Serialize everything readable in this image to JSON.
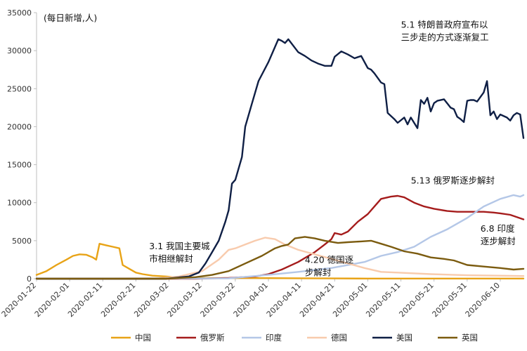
{
  "chart_data": {
    "type": "line",
    "title": "",
    "unit_label": "(每日新增,人)",
    "ylim": [
      0,
      35000
    ],
    "y_ticks": [
      0,
      5000,
      10000,
      15000,
      20000,
      25000,
      30000,
      35000
    ],
    "x_range": [
      "2020-01-22",
      "2020-06-17"
    ],
    "x_ticks": [
      "2020-01-22",
      "2020-02-01",
      "2020-02-11",
      "2020-02-21",
      "2020-03-02",
      "2020-03-12",
      "2020-03-22",
      "2020-04-01",
      "2020-04-11",
      "2020-04-21",
      "2020-05-01",
      "2020-05-11",
      "2020-05-21",
      "2020-05-31",
      "2020-06-10"
    ],
    "grid": false,
    "legend_position": "bottom",
    "series": [
      {
        "name": "中国",
        "color": "#E8A317",
        "points": [
          [
            "2020-01-22",
            500
          ],
          [
            "2020-01-25",
            1000
          ],
          [
            "2020-01-28",
            1800
          ],
          [
            "2020-01-31",
            2500
          ],
          [
            "2020-02-02",
            3000
          ],
          [
            "2020-02-04",
            3200
          ],
          [
            "2020-02-06",
            3150
          ],
          [
            "2020-02-08",
            2800
          ],
          [
            "2020-02-09",
            2500
          ],
          [
            "2020-02-10",
            4600
          ],
          [
            "2020-02-12",
            4400
          ],
          [
            "2020-02-14",
            4200
          ],
          [
            "2020-02-16",
            4000
          ],
          [
            "2020-02-17",
            1800
          ],
          [
            "2020-02-19",
            1300
          ],
          [
            "2020-02-21",
            800
          ],
          [
            "2020-02-23",
            600
          ],
          [
            "2020-02-26",
            400
          ],
          [
            "2020-03-01",
            300
          ],
          [
            "2020-03-05",
            150
          ],
          [
            "2020-03-10",
            80
          ],
          [
            "2020-03-20",
            80
          ],
          [
            "2020-04-01",
            70
          ],
          [
            "2020-04-10",
            60
          ],
          [
            "2020-04-20",
            40
          ],
          [
            "2020-05-01",
            20
          ],
          [
            "2020-06-17",
            20
          ]
        ]
      },
      {
        "name": "俄罗斯",
        "color": "#A51C1C",
        "points": [
          [
            "2020-01-22",
            0
          ],
          [
            "2020-03-10",
            0
          ],
          [
            "2020-03-20",
            100
          ],
          [
            "2020-03-28",
            300
          ],
          [
            "2020-04-01",
            600
          ],
          [
            "2020-04-05",
            1200
          ],
          [
            "2020-04-10",
            2200
          ],
          [
            "2020-04-15",
            3500
          ],
          [
            "2020-04-18",
            4500
          ],
          [
            "2020-04-20",
            5200
          ],
          [
            "2020-04-21",
            6000
          ],
          [
            "2020-04-23",
            5800
          ],
          [
            "2020-04-25",
            6200
          ],
          [
            "2020-04-28",
            7500
          ],
          [
            "2020-05-01",
            8500
          ],
          [
            "2020-05-03",
            9500
          ],
          [
            "2020-05-05",
            10500
          ],
          [
            "2020-05-08",
            10800
          ],
          [
            "2020-05-10",
            10900
          ],
          [
            "2020-05-12",
            10700
          ],
          [
            "2020-05-15",
            10000
          ],
          [
            "2020-05-18",
            9500
          ],
          [
            "2020-05-21",
            9200
          ],
          [
            "2020-05-25",
            8900
          ],
          [
            "2020-05-28",
            8800
          ],
          [
            "2020-06-01",
            8800
          ],
          [
            "2020-06-05",
            8800
          ],
          [
            "2020-06-08",
            8700
          ],
          [
            "2020-06-10",
            8600
          ],
          [
            "2020-06-13",
            8400
          ],
          [
            "2020-06-17",
            7800
          ]
        ]
      },
      {
        "name": "印度",
        "color": "#B4C7E7",
        "points": [
          [
            "2020-01-22",
            0
          ],
          [
            "2020-03-20",
            50
          ],
          [
            "2020-04-01",
            500
          ],
          [
            "2020-04-10",
            900
          ],
          [
            "2020-04-20",
            1400
          ],
          [
            "2020-04-30",
            2200
          ],
          [
            "2020-05-05",
            3000
          ],
          [
            "2020-05-10",
            3500
          ],
          [
            "2020-05-15",
            4200
          ],
          [
            "2020-05-20",
            5500
          ],
          [
            "2020-05-25",
            6500
          ],
          [
            "2020-05-31",
            8000
          ],
          [
            "2020-06-05",
            9500
          ],
          [
            "2020-06-10",
            10500
          ],
          [
            "2020-06-14",
            11000
          ],
          [
            "2020-06-16",
            10800
          ],
          [
            "2020-06-17",
            11000
          ]
        ]
      },
      {
        "name": "德国",
        "color": "#F8CBAD",
        "points": [
          [
            "2020-01-22",
            0
          ],
          [
            "2020-02-28",
            50
          ],
          [
            "2020-03-05",
            300
          ],
          [
            "2020-03-12",
            1000
          ],
          [
            "2020-03-17",
            2500
          ],
          [
            "2020-03-20",
            3800
          ],
          [
            "2020-03-22",
            4000
          ],
          [
            "2020-03-25",
            4500
          ],
          [
            "2020-03-28",
            5000
          ],
          [
            "2020-03-31",
            5400
          ],
          [
            "2020-04-03",
            5200
          ],
          [
            "2020-04-06",
            4500
          ],
          [
            "2020-04-10",
            3800
          ],
          [
            "2020-04-15",
            3200
          ],
          [
            "2020-04-20",
            2600
          ],
          [
            "2020-04-25",
            2000
          ],
          [
            "2020-04-30",
            1400
          ],
          [
            "2020-05-05",
            900
          ],
          [
            "2020-05-10",
            800
          ],
          [
            "2020-05-20",
            600
          ],
          [
            "2020-05-31",
            450
          ],
          [
            "2020-06-10",
            400
          ],
          [
            "2020-06-17",
            350
          ]
        ]
      },
      {
        "name": "美国",
        "color": "#0F1F45",
        "points": [
          [
            "2020-01-22",
            0
          ],
          [
            "2020-03-01",
            0
          ],
          [
            "2020-03-08",
            300
          ],
          [
            "2020-03-11",
            800
          ],
          [
            "2020-03-13",
            2000
          ],
          [
            "2020-03-15",
            3500
          ],
          [
            "2020-03-17",
            5000
          ],
          [
            "2020-03-19",
            7500
          ],
          [
            "2020-03-20",
            9000
          ],
          [
            "2020-03-21",
            12500
          ],
          [
            "2020-03-22",
            13000
          ],
          [
            "2020-03-24",
            16000
          ],
          [
            "2020-03-25",
            20000
          ],
          [
            "2020-03-27",
            23000
          ],
          [
            "2020-03-29",
            26000
          ],
          [
            "2020-04-01",
            28500
          ],
          [
            "2020-04-02",
            29500
          ],
          [
            "2020-04-04",
            31500
          ],
          [
            "2020-04-05",
            31300
          ],
          [
            "2020-04-06",
            31000
          ],
          [
            "2020-04-07",
            31500
          ],
          [
            "2020-04-10",
            29800
          ],
          [
            "2020-04-12",
            29300
          ],
          [
            "2020-04-14",
            28700
          ],
          [
            "2020-04-16",
            28300
          ],
          [
            "2020-04-18",
            28000
          ],
          [
            "2020-04-20",
            28000
          ],
          [
            "2020-04-21",
            29200
          ],
          [
            "2020-04-23",
            29900
          ],
          [
            "2020-04-25",
            29500
          ],
          [
            "2020-04-27",
            29000
          ],
          [
            "2020-04-29",
            29300
          ],
          [
            "2020-05-01",
            27700
          ],
          [
            "2020-05-02",
            27500
          ],
          [
            "2020-05-03",
            27000
          ],
          [
            "2020-05-05",
            25800
          ],
          [
            "2020-05-06",
            25600
          ],
          [
            "2020-05-07",
            21800
          ],
          [
            "2020-05-09",
            21000
          ],
          [
            "2020-05-10",
            20500
          ],
          [
            "2020-05-12",
            21200
          ],
          [
            "2020-05-13",
            20300
          ],
          [
            "2020-05-14",
            21200
          ],
          [
            "2020-05-16",
            19800
          ],
          [
            "2020-05-17",
            23500
          ],
          [
            "2020-05-18",
            23000
          ],
          [
            "2020-05-19",
            23800
          ],
          [
            "2020-05-20",
            22000
          ],
          [
            "2020-05-21",
            23100
          ],
          [
            "2020-05-22",
            23400
          ],
          [
            "2020-05-24",
            23600
          ],
          [
            "2020-05-26",
            22500
          ],
          [
            "2020-05-27",
            22300
          ],
          [
            "2020-05-28",
            21300
          ],
          [
            "2020-05-29",
            21000
          ],
          [
            "2020-05-30",
            20600
          ],
          [
            "2020-05-31",
            23400
          ],
          [
            "2020-06-01",
            23500
          ],
          [
            "2020-06-02",
            23500
          ],
          [
            "2020-06-03",
            23300
          ],
          [
            "2020-06-05",
            24500
          ],
          [
            "2020-06-06",
            26000
          ],
          [
            "2020-06-07",
            21500
          ],
          [
            "2020-06-08",
            22000
          ],
          [
            "2020-06-09",
            21000
          ],
          [
            "2020-06-10",
            21600
          ],
          [
            "2020-06-12",
            21200
          ],
          [
            "2020-06-13",
            20800
          ],
          [
            "2020-06-14",
            21500
          ],
          [
            "2020-06-15",
            21800
          ],
          [
            "2020-06-16",
            21600
          ],
          [
            "2020-06-17",
            18500
          ]
        ]
      },
      {
        "name": "英国",
        "color": "#7B5B0F",
        "points": [
          [
            "2020-01-22",
            0
          ],
          [
            "2020-03-01",
            0
          ],
          [
            "2020-03-10",
            200
          ],
          [
            "2020-03-15",
            500
          ],
          [
            "2020-03-20",
            1000
          ],
          [
            "2020-03-25",
            2000
          ],
          [
            "2020-03-30",
            3000
          ],
          [
            "2020-04-03",
            4000
          ],
          [
            "2020-04-05",
            4300
          ],
          [
            "2020-04-07",
            4500
          ],
          [
            "2020-04-09",
            5300
          ],
          [
            "2020-04-12",
            5500
          ],
          [
            "2020-04-15",
            5300
          ],
          [
            "2020-04-18",
            5000
          ],
          [
            "2020-04-22",
            4700
          ],
          [
            "2020-04-25",
            4800
          ],
          [
            "2020-04-29",
            4900
          ],
          [
            "2020-05-02",
            5000
          ],
          [
            "2020-05-05",
            4600
          ],
          [
            "2020-05-08",
            4200
          ],
          [
            "2020-05-12",
            3600
          ],
          [
            "2020-05-16",
            3300
          ],
          [
            "2020-05-20",
            2800
          ],
          [
            "2020-05-24",
            2600
          ],
          [
            "2020-05-27",
            2400
          ],
          [
            "2020-05-31",
            1800
          ],
          [
            "2020-06-05",
            1600
          ],
          [
            "2020-06-10",
            1400
          ],
          [
            "2020-06-14",
            1200
          ],
          [
            "2020-06-17",
            1300
          ]
        ]
      }
    ],
    "annotations": [
      {
        "lines": [
          "5.1  特朗普政府宣布以",
          "三步走的方式逐渐复工"
        ],
        "date": "2020-05-11",
        "y": 33000
      },
      {
        "lines": [
          "5.13  俄罗斯逐步解封"
        ],
        "date": "2020-05-14",
        "y": 12500
      },
      {
        "lines": [
          "6.8  印度",
          "逐步解封"
        ],
        "date": "2020-06-04",
        "y": 6200
      },
      {
        "lines": [
          "3.1 我国主要城",
          "市相继解封"
        ],
        "date": "2020-02-25",
        "y": 3900
      },
      {
        "lines": [
          "4.20  德国逐",
          "步解封"
        ],
        "date": "2020-04-12",
        "y": 2100
      }
    ]
  }
}
